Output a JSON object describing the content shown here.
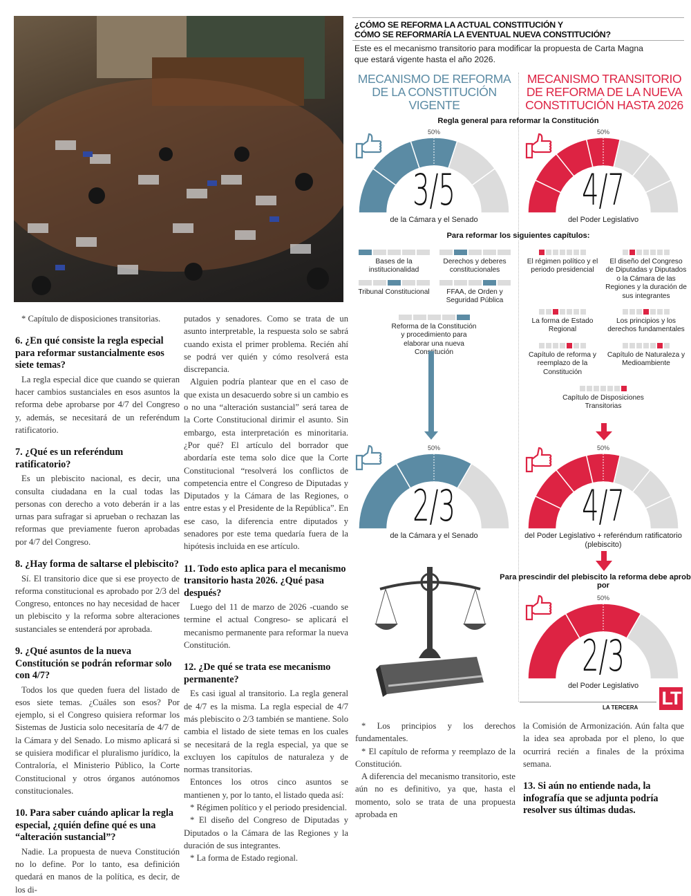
{
  "article": {
    "col1": [
      {
        "type": "p",
        "text": "* Capítulo de disposiciones transitorias."
      },
      {
        "type": "h",
        "text": "6. ¿En qué consiste la regla especial para reformar sustancialmente esos siete temas?"
      },
      {
        "type": "p",
        "text": "La regla especial dice que cuando se quieran hacer cambios sustanciales en esos asuntos la reforma debe aprobarse por 4/7 del Congreso y, además, se necesitará de un referéndum ratificatorio."
      },
      {
        "type": "h",
        "text": "7. ¿Qué es un referéndum ratificatorio?"
      },
      {
        "type": "p",
        "text": "Es un plebiscito nacional, es decir, una consulta ciudadana en la cual todas las personas con derecho a voto deberán ir a las urnas para sufragar si aprueban o rechazan las reformas que previamente fueron aprobadas por 4/7 del Congreso."
      },
      {
        "type": "h",
        "text": "8. ¿Hay forma de saltarse el plebiscito?"
      },
      {
        "type": "p",
        "text": "Sí. El transitorio dice que si ese proyecto de reforma constitucional es aprobado por 2/3 del Congreso, entonces no hay necesidad de hacer un plebiscito y la reforma sobre alteraciones sustanciales se entenderá por aprobada."
      },
      {
        "type": "h",
        "text": "9. ¿Qué asuntos de la nueva Constitución se podrán reformar solo con 4/7?"
      },
      {
        "type": "p",
        "text": "Todos los que queden fuera del listado de esos siete temas. ¿Cuáles son esos? Por ejemplo, si el Congreso quisiera reformar los Sistemas de Justicia solo necesitaría de 4/7 de la Cámara y del Senado. Lo mismo aplicará si se quisiera modificar el pluralismo jurídico, la Contraloría, el Ministerio Público, la Corte Constitucional y otros órganos autónomos constitucionales."
      },
      {
        "type": "h",
        "text": "10. Para saber cuándo aplicar la regla especial, ¿quién define qué es una “alteración sustancial”?"
      },
      {
        "type": "p",
        "text": "Nadie. La propuesta de nueva Constitución no lo define. Por lo tanto, esa definición quedará en manos de la política, es decir, de los di-"
      }
    ],
    "col2": [
      {
        "type": "p0",
        "text": "putados y senadores. Como se trata de un asunto interpretable, la respuesta solo se sabrá cuando exista el primer problema. Recién ahí se podrá ver quién y cómo resolverá esta discrepancia."
      },
      {
        "type": "p",
        "text": "Alguien podría plantear que en el caso de que exista un desacuerdo sobre si un cambio es o no una “alteración sustancial” será tarea de la Corte Constitucional dirimir el asunto. Sin embargo, esta interpretación es minoritaria. ¿Por qué? El artículo del borrador que abordaría este tema solo dice que la Corte Constitucional “resolverá los conflictos de competencia entre el Congreso de Diputadas y Diputados y la Cámara de las Regiones, o entre estas y el Presidente de la República”. En ese caso, la diferencia entre diputados y senadores por este tema quedaría fuera de la hipótesis incluida en ese artículo."
      },
      {
        "type": "h",
        "text": "11. Todo esto aplica para el mecanismo transitorio hasta 2026. ¿Qué pasa después?"
      },
      {
        "type": "p",
        "text": "Luego del 11 de marzo de 2026 -cuando se termine el actual Congreso- se aplicará el mecanismo permanente para reformar la nueva Constitución."
      },
      {
        "type": "h",
        "text": "12. ¿De qué se trata ese mecanismo permanente?"
      },
      {
        "type": "p",
        "text": "Es casi igual al transitorio. La regla general de 4/7 es la misma. La regla especial de 4/7 más plebiscito o 2/3 también se mantiene. Solo cambia el listado de siete temas en los cuales se necesitará de la regla especial, ya que se excluyen los capítulos de naturaleza y de normas transitorias."
      },
      {
        "type": "p",
        "text": "Entonces los otros cinco asuntos se mantienen y, por lo tanto, el listado queda así:"
      },
      {
        "type": "p",
        "text": "* Régimen político y el periodo presidencial."
      },
      {
        "type": "p",
        "text": "* El diseño del Congreso de Diputadas y Diputados o la Cámara de las Regiones y la duración de sus integrantes."
      },
      {
        "type": "p",
        "text": "* La forma de Estado regional."
      }
    ],
    "col3": [
      {
        "type": "p",
        "text": "* Los principios y los derechos fundamentales."
      },
      {
        "type": "p",
        "text": "* El capítulo de reforma y reemplazo de la Constitución."
      },
      {
        "type": "p",
        "text": "A diferencia del mecanismo transitorio, este aún no es definitivo, ya que, hasta el momento, solo se trata de una propuesta aprobada en"
      }
    ],
    "col4": [
      {
        "type": "p0",
        "text": "la Comisión de Armonización. Aún falta que la idea sea aprobada por el pleno, lo que ocurrirá recién a finales de la próxima semana."
      },
      {
        "type": "h",
        "text": "13. Si aún no entiende nada, la infografía que se adjunta podría resolver sus últimas dudas."
      }
    ]
  },
  "infographic": {
    "title_line1": "¿CÓMO SE REFORMA LA ACTUAL CONSTITUCIÓN Y",
    "title_line2": "CÓMO SE REFORMARÍA LA EVENTUAL NUEVA CONSTITUCIÓN?",
    "subtitle_line1": "Este es el mecanismo transitorio para modificar la propuesta de Carta Magna",
    "subtitle_line2": "que estará vigente hasta el año 2026.",
    "left_heading": "MECANISMO DE REFORMA DE LA CONSTITUCIÓN VIGENTE",
    "right_heading": "MECANISMO TRANSITORIO DE REFORMA DE LA NUEVA CONSTITUCIÓN HASTA 2026",
    "general_rule": "Regla general para reformar la Constitución",
    "chapters_label": "Para reformar los siguientes capítulos:",
    "prescindir": "Para prescindir del plebiscito la reforma debe aprobarse por",
    "colors": {
      "blue": "#5b8ba4",
      "red": "#dd2343",
      "gray": "#dcdcdc"
    },
    "gauges": [
      {
        "numerator": 3,
        "denominator": 5,
        "label": "3/5",
        "pct": "50%",
        "color": "blue",
        "caption": "de la Cámara y el Senado"
      },
      {
        "numerator": 4,
        "denominator": 7,
        "label": "4/7",
        "pct": "50%",
        "color": "red",
        "caption": "del Poder Legislativo"
      },
      {
        "numerator": 2,
        "denominator": 3,
        "label": "2/3",
        "pct": "50%",
        "color": "blue",
        "caption": "de la Cámara y el Senado"
      },
      {
        "numerator": 4,
        "denominator": 7,
        "label": "4/7",
        "pct": "50%",
        "color": "red",
        "caption": "del Poder Legislativo + referéndum ratificatorio (plebiscito)"
      },
      {
        "numerator": 2,
        "denominator": 3,
        "label": "2/3",
        "pct": "50%",
        "color": "red",
        "caption": "del Poder Legislativo"
      }
    ],
    "left_chapters": [
      {
        "label": "Bases de la institucionalidad",
        "index": 0,
        "of": 5
      },
      {
        "label": "Derechos y deberes constitucionales",
        "index": 1,
        "of": 5
      },
      {
        "label": "Tribunal Constitucional",
        "index": 2,
        "of": 5
      },
      {
        "label": "FFAA, de Orden y Seguridad Pública",
        "index": 3,
        "of": 5
      },
      {
        "label": "Reforma de la Constitución y procedimiento para elaborar una nueva Constitución",
        "index": 4,
        "of": 5
      }
    ],
    "right_chapters": [
      {
        "label": "El régimen político y el periodo presidencial",
        "index": 0,
        "of": 7
      },
      {
        "label": "El diseño del Congreso de Diputadas y Diputados o la Cámara de las Regiones y la duración de sus integrantes",
        "index": 1,
        "of": 7
      },
      {
        "label": "La forma de Estado Regional",
        "index": 2,
        "of": 7
      },
      {
        "label": "Los principios y los derechos fundamentales",
        "index": 3,
        "of": 7
      },
      {
        "label": "Capítulo de reforma y reemplazo de la Constitución",
        "index": 4,
        "of": 7
      },
      {
        "label": "Capítulo de Naturaleza y Medioambiente",
        "index": 5,
        "of": 7
      },
      {
        "label": "Capítulo de Disposiciones Transitorias",
        "index": 6,
        "of": 7
      }
    ],
    "brand": "LA TERCERA",
    "logo": "LT"
  }
}
